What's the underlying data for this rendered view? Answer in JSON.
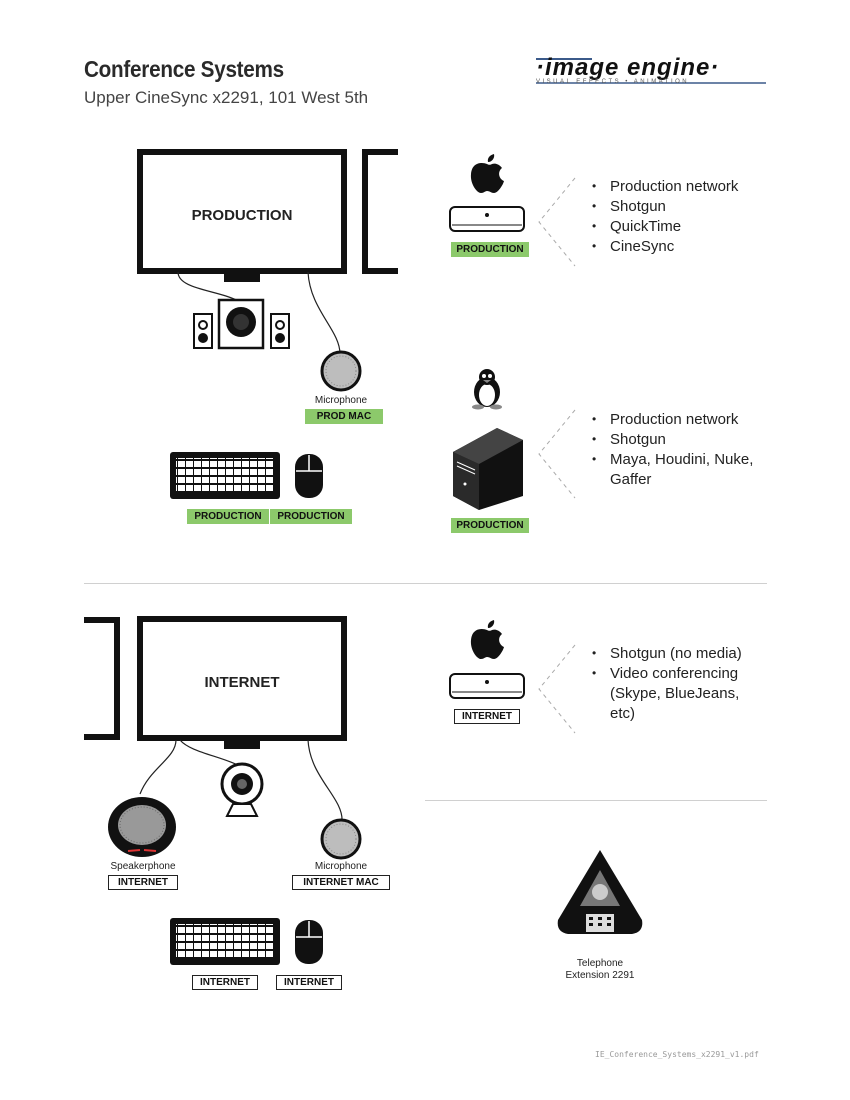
{
  "header": {
    "title": "Conference Systems",
    "subtitle": "Upper CineSync x2291, 101 West 5th",
    "logo_text": "·image engine·",
    "logo_tagline": "VISUAL EFFECTS • ANIMATION"
  },
  "production": {
    "monitor_label": "PRODUCTION",
    "microphone_caption": "Microphone",
    "microphone_tag": "PROD MAC",
    "keyboard_tag": "PRODUCTION",
    "mouse_tag": "PRODUCTION",
    "mac": {
      "tag": "PRODUCTION",
      "bullets": [
        "Production network",
        "Shotgun",
        "QuickTime",
        "CineSync"
      ]
    },
    "linux": {
      "tag": "PRODUCTION",
      "bullets": [
        "Production network",
        "Shotgun",
        "Maya, Houdini, Nuke,",
        "Gaffer"
      ]
    }
  },
  "internet": {
    "monitor_label": "INTERNET",
    "speakerphone_caption": "Speakerphone",
    "speakerphone_tag": "INTERNET",
    "microphone_caption": "Microphone",
    "microphone_tag": "INTERNET MAC",
    "keyboard_tag": "INTERNET",
    "mouse_tag": "INTERNET",
    "mac": {
      "tag": "INTERNET",
      "bullets": [
        "Shotgun (no media)",
        "Video conferencing",
        "(Skype, BlueJeans,",
        "etc)"
      ]
    },
    "telephone_caption_1": "Telephone",
    "telephone_caption_2": "Extension 2291"
  },
  "footer": {
    "filename": "IE_Conference_Systems_x2291_v1.pdf"
  }
}
